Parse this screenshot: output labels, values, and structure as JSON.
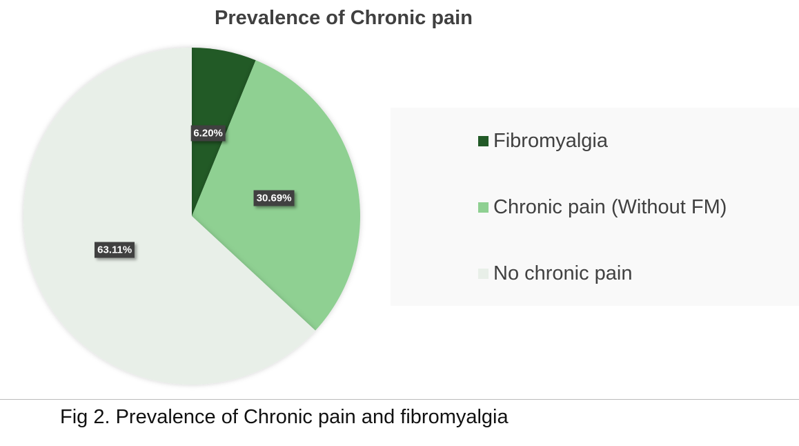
{
  "chart_data": {
    "type": "pie",
    "title": "Prevalence of Chronic pain",
    "categories": [
      "Fibromyalgia",
      "Chronic pain (Without FM)",
      "No chronic pain"
    ],
    "values": [
      6.2,
      30.69,
      63.11
    ],
    "data_labels": [
      "6.20%",
      "30.69%",
      "63.11%"
    ],
    "colors": [
      "#225a27",
      "#8fd092",
      "#e8efe8"
    ],
    "legend_position": "right"
  },
  "caption": "Fig 2. Prevalence of Chronic pain and fibromyalgia"
}
